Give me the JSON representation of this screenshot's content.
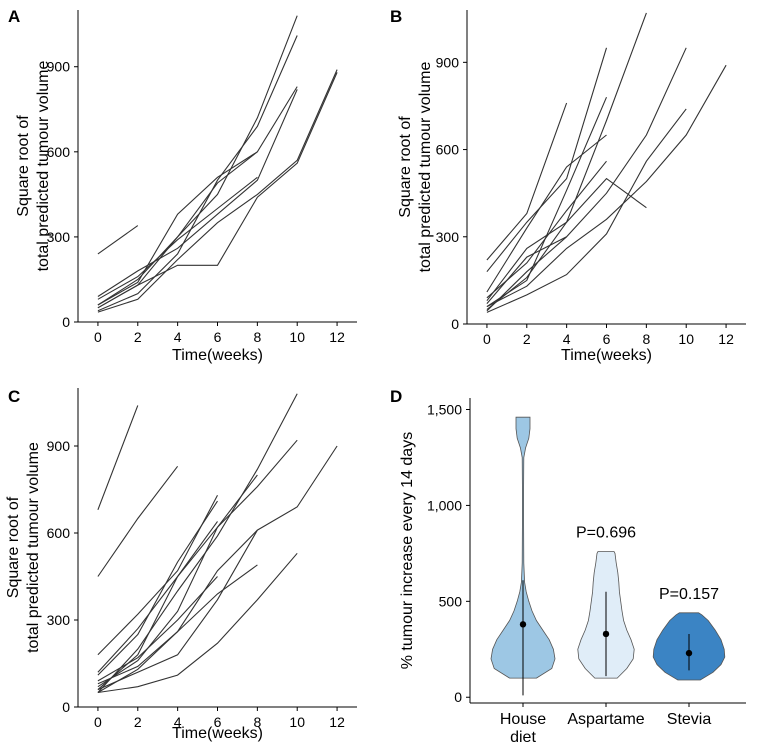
{
  "chart_data": [
    {
      "panel": "A",
      "type": "line",
      "xlabel": "Time(weeks)",
      "ylabel_line1": "Square root of",
      "ylabel_line2": "total predicted tumour volume",
      "xticks": [
        0,
        2,
        4,
        6,
        8,
        10,
        12
      ],
      "yticks": [
        0,
        300,
        600,
        900
      ],
      "xlim": [
        -1,
        13
      ],
      "ylim": [
        0,
        1100
      ],
      "series": [
        {
          "x": [
            0,
            2
          ],
          "y": [
            240,
            340
          ]
        },
        {
          "x": [
            0,
            2,
            4,
            6,
            8,
            10
          ],
          "y": [
            90,
            180,
            260,
            380,
            500,
            820
          ]
        },
        {
          "x": [
            0,
            2,
            4,
            6,
            8,
            10
          ],
          "y": [
            50,
            130,
            300,
            450,
            720,
            1080
          ]
        },
        {
          "x": [
            0,
            2,
            4,
            6,
            8,
            10
          ],
          "y": [
            40,
            100,
            240,
            500,
            690,
            1010
          ]
        },
        {
          "x": [
            0,
            2,
            4,
            6,
            8,
            10
          ],
          "y": [
            60,
            150,
            300,
            490,
            600,
            830
          ]
        },
        {
          "x": [
            0,
            2,
            4,
            6,
            8,
            10,
            12
          ],
          "y": [
            50,
            130,
            200,
            200,
            440,
            560,
            880
          ]
        },
        {
          "x": [
            0,
            2,
            4,
            6,
            8,
            10,
            12
          ],
          "y": [
            35,
            80,
            220,
            350,
            450,
            570,
            890
          ]
        },
        {
          "x": [
            0,
            2,
            4,
            6,
            8
          ],
          "y": [
            60,
            140,
            380,
            510,
            600
          ]
        },
        {
          "x": [
            0,
            2,
            4,
            6,
            8
          ],
          "y": [
            80,
            160,
            290,
            400,
            510
          ]
        }
      ]
    },
    {
      "panel": "B",
      "type": "line",
      "xlabel": "Time(weeks)",
      "ylabel_line1": "Square root of",
      "ylabel_line2": "total predicted tumour volume",
      "xticks": [
        0,
        2,
        4,
        6,
        8,
        10,
        12
      ],
      "yticks": [
        0,
        300,
        600,
        900
      ],
      "xlim": [
        -1,
        13
      ],
      "ylim": [
        0,
        1080
      ],
      "series": [
        {
          "x": [
            0,
            2,
            4
          ],
          "y": [
            220,
            380,
            760
          ]
        },
        {
          "x": [
            0,
            2,
            4,
            6
          ],
          "y": [
            180,
            350,
            500,
            950
          ]
        },
        {
          "x": [
            0,
            2,
            4,
            6
          ],
          "y": [
            110,
            330,
            540,
            650
          ]
        },
        {
          "x": [
            0,
            2,
            4,
            6
          ],
          "y": [
            60,
            150,
            460,
            780
          ]
        },
        {
          "x": [
            0,
            2,
            4,
            6,
            8
          ],
          "y": [
            80,
            260,
            350,
            700,
            1070
          ]
        },
        {
          "x": [
            0,
            2,
            4,
            6,
            8
          ],
          "y": [
            50,
            160,
            350,
            500,
            400
          ]
        },
        {
          "x": [
            0,
            2,
            4,
            6,
            8,
            10
          ],
          "y": [
            70,
            230,
            300,
            450,
            650,
            950
          ]
        },
        {
          "x": [
            0,
            2,
            4,
            6,
            8,
            10
          ],
          "y": [
            40,
            100,
            170,
            310,
            560,
            740
          ]
        },
        {
          "x": [
            0,
            2,
            4,
            6,
            8,
            10,
            12
          ],
          "y": [
            60,
            130,
            260,
            360,
            490,
            650,
            890
          ]
        },
        {
          "x": [
            0,
            2,
            4
          ],
          "y": [
            45,
            180,
            300
          ]
        },
        {
          "x": [
            0,
            2,
            4,
            6
          ],
          "y": [
            90,
            210,
            390,
            560
          ]
        }
      ]
    },
    {
      "panel": "C",
      "type": "line",
      "xlabel": "Time(weeks)",
      "ylabel_line1": "Square root of",
      "ylabel_line2": "total predicted tumour volume",
      "xticks": [
        0,
        2,
        4,
        6,
        8,
        10,
        12
      ],
      "yticks": [
        0,
        300,
        600,
        900
      ],
      "xlim": [
        -1,
        13
      ],
      "ylim": [
        0,
        1100
      ],
      "series": [
        {
          "x": [
            0,
            2
          ],
          "y": [
            680,
            1040
          ]
        },
        {
          "x": [
            0,
            2,
            4
          ],
          "y": [
            450,
            650,
            830
          ]
        },
        {
          "x": [
            0,
            2,
            4,
            6
          ],
          "y": [
            180,
            320,
            470,
            730
          ]
        },
        {
          "x": [
            0,
            2,
            4,
            6
          ],
          "y": [
            110,
            250,
            500,
            710
          ]
        },
        {
          "x": [
            0,
            2,
            4,
            6,
            8
          ],
          "y": [
            60,
            180,
            450,
            620,
            800
          ]
        },
        {
          "x": [
            0,
            2,
            4,
            6,
            8,
            10
          ],
          "y": [
            50,
            200,
            400,
            590,
            820,
            1080
          ]
        },
        {
          "x": [
            0,
            2,
            4,
            6,
            8,
            10
          ],
          "y": [
            70,
            160,
            330,
            620,
            760,
            920
          ]
        },
        {
          "x": [
            0,
            2,
            4,
            6,
            8,
            10,
            12
          ],
          "y": [
            50,
            130,
            260,
            470,
            610,
            690,
            900
          ]
        },
        {
          "x": [
            0,
            2,
            4,
            6,
            8,
            10
          ],
          "y": [
            50,
            70,
            110,
            220,
            370,
            530
          ]
        },
        {
          "x": [
            0,
            2,
            4,
            6,
            8
          ],
          "y": [
            60,
            120,
            180,
            370,
            610
          ]
        },
        {
          "x": [
            0,
            2,
            4,
            6
          ],
          "y": [
            90,
            170,
            300,
            450
          ]
        },
        {
          "x": [
            0,
            2,
            4,
            6
          ],
          "y": [
            120,
            270,
            450,
            640
          ]
        },
        {
          "x": [
            0,
            2,
            4,
            6,
            8
          ],
          "y": [
            80,
            140,
            260,
            390,
            490
          ]
        }
      ]
    },
    {
      "panel": "D",
      "type": "violin",
      "ylabel": "% tumour increase every 14 days",
      "yticks": [
        0,
        500,
        1000,
        1500
      ],
      "ytick_labels": [
        "0",
        "500",
        "1,000",
        "1,500"
      ],
      "ylim": [
        -30,
        1560
      ],
      "categories": [
        {
          "label_line1": "House",
          "label_line2": "diet",
          "color": "#9dc7e4",
          "mean": 380,
          "ci": [
            10,
            610
          ],
          "annotation": "",
          "profile": [
            [
              100,
              0.42
            ],
            [
              150,
              0.9
            ],
            [
              200,
              1.0
            ],
            [
              250,
              0.95
            ],
            [
              300,
              0.82
            ],
            [
              350,
              0.62
            ],
            [
              400,
              0.42
            ],
            [
              450,
              0.28
            ],
            [
              500,
              0.18
            ],
            [
              550,
              0.1
            ],
            [
              600,
              0.05
            ],
            [
              700,
              0.025
            ],
            [
              900,
              0.02
            ],
            [
              1100,
              0.02
            ],
            [
              1250,
              0.025
            ],
            [
              1300,
              0.08
            ],
            [
              1350,
              0.18
            ],
            [
              1400,
              0.22
            ],
            [
              1450,
              0.22
            ],
            [
              1460,
              0.22
            ]
          ]
        },
        {
          "label_line1": "Aspartame",
          "label_line2": "",
          "color": "#e0edf8",
          "mean": 330,
          "ci": [
            110,
            550
          ],
          "annotation": "P=0.696",
          "profile": [
            [
              100,
              0.35
            ],
            [
              150,
              0.65
            ],
            [
              200,
              0.85
            ],
            [
              250,
              0.88
            ],
            [
              300,
              0.78
            ],
            [
              350,
              0.65
            ],
            [
              400,
              0.55
            ],
            [
              450,
              0.5
            ],
            [
              500,
              0.46
            ],
            [
              550,
              0.42
            ],
            [
              600,
              0.4
            ],
            [
              650,
              0.37
            ],
            [
              700,
              0.32
            ],
            [
              750,
              0.28
            ],
            [
              760,
              0.25
            ]
          ]
        },
        {
          "label_line1": "Stevia",
          "label_line2": "",
          "color": "#3b84c4",
          "mean": 230,
          "ci": [
            140,
            330
          ],
          "annotation": "P=0.157",
          "profile": [
            [
              90,
              0.35
            ],
            [
              130,
              0.75
            ],
            [
              170,
              1.0
            ],
            [
              210,
              1.12
            ],
            [
              250,
              1.1
            ],
            [
              300,
              1.0
            ],
            [
              350,
              0.82
            ],
            [
              400,
              0.6
            ],
            [
              430,
              0.4
            ],
            [
              440,
              0.3
            ]
          ]
        }
      ]
    }
  ]
}
